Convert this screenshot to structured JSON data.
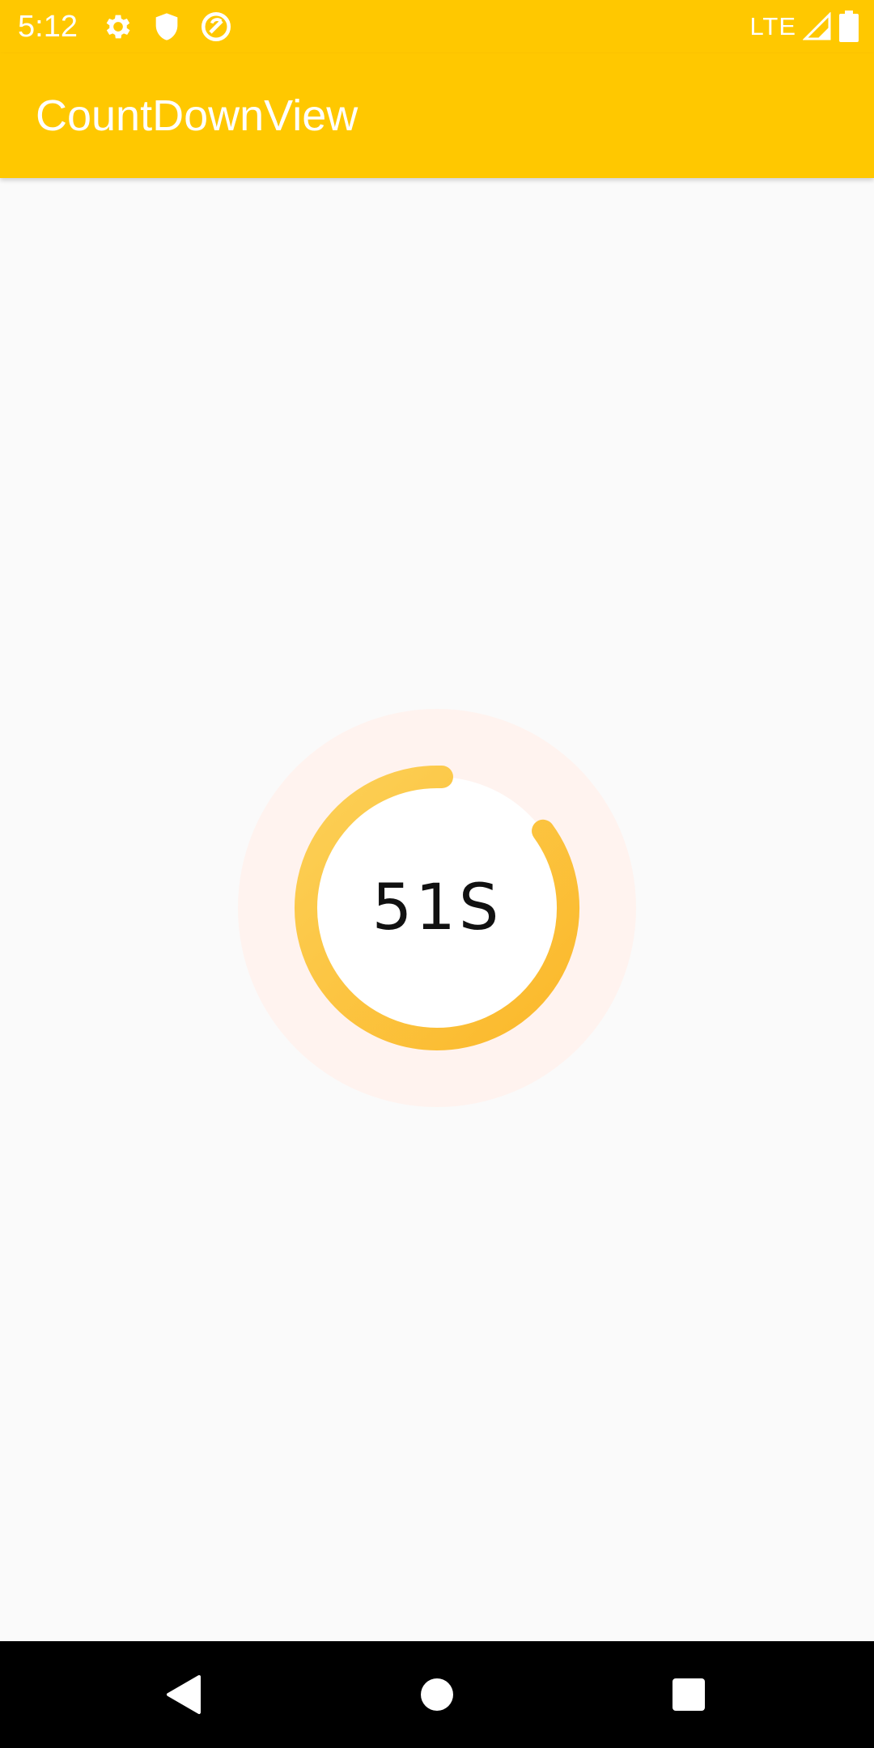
{
  "status_bar": {
    "time": "5:12",
    "network": "LTE",
    "icons": [
      "gear-icon",
      "shield-icon",
      "sync-icon",
      "signal-icon",
      "battery-icon"
    ],
    "color": "#FFC800"
  },
  "app_bar": {
    "title": "CountDownView",
    "color": "#FFC800"
  },
  "countdown": {
    "label": "51S",
    "progress_fraction": 0.85,
    "colors": {
      "halo": "#FFF3EF",
      "inner": "#FFFFFF",
      "arc_start": "#FCD057",
      "arc_end": "#FBB82A"
    }
  },
  "nav_bar": {
    "icons": [
      "back-icon",
      "home-icon",
      "recents-icon"
    ]
  }
}
